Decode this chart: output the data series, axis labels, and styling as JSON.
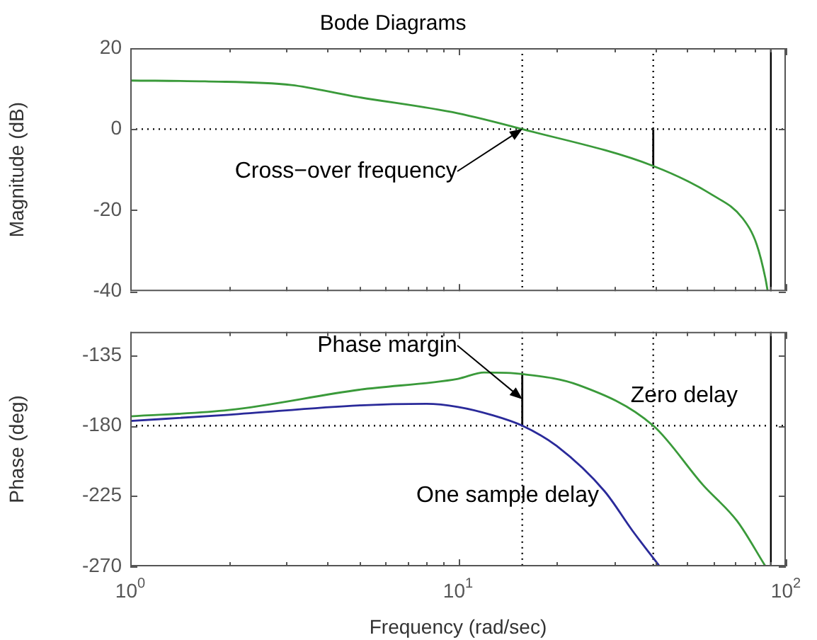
{
  "chart_data": [
    {
      "type": "line",
      "title": "Bode Diagrams",
      "ylabel": "Magnitude (dB)",
      "log": "x",
      "xlim": [
        1,
        100
      ],
      "xticks": [
        1,
        {
          "value": 2,
          "label": null
        },
        {
          "value": 3,
          "label": null
        },
        {
          "value": 4,
          "label": null
        },
        {
          "value": 5,
          "label": null
        },
        {
          "value": 6,
          "label": null
        },
        {
          "value": 7,
          "label": null
        },
        {
          "value": 8,
          "label": null
        },
        {
          "value": 9,
          "label": null
        },
        10,
        {
          "value": 20,
          "label": null
        },
        {
          "value": 30,
          "label": null
        },
        {
          "value": 40,
          "label": null
        },
        {
          "value": 50,
          "label": null
        },
        {
          "value": 60,
          "label": null
        },
        {
          "value": 70,
          "label": null
        },
        {
          "value": 80,
          "label": null
        },
        {
          "value": 90,
          "label": null
        },
        100
      ],
      "ylim": [
        -40,
        20
      ],
      "yticks": [
        -40,
        -20,
        0,
        20
      ],
      "tick_labels": "y",
      "grid": false,
      "marker": "none",
      "line_style": "solid",
      "series": [
        {
          "color": "#3a9a3a",
          "x": [
            1,
            1.69,
            3.1,
            4.8,
            10,
            15.7,
            39.4,
            59.8,
            73.8,
            81.5,
            86.7,
            88
          ],
          "values": [
            12,
            11.8,
            10.9,
            8.1,
            3.9,
            0,
            -9.1,
            -16.3,
            -22,
            -28.5,
            -37,
            -40
          ]
        },
        {
          "color": "#000000",
          "x": [
            39.4,
            39.4
          ],
          "values": [
            0,
            -9.1
          ]
        }
      ],
      "ref_lines": [
        {
          "axis": "y",
          "value": 0,
          "color": "#000000",
          "line_style": "dotted"
        },
        {
          "axis": "x",
          "value": 15.7,
          "color": "#000000",
          "line_style": "dotted"
        },
        {
          "axis": "x",
          "value": 39.4,
          "color": "#000000",
          "line_style": "dotted"
        },
        {
          "axis": "x",
          "value": 90,
          "color": "#000000",
          "line_style": "solid"
        }
      ],
      "annotations": [
        {
          "text": "Cross−over frequency",
          "x": 15.7,
          "y": 0
        }
      ]
    },
    {
      "type": "line",
      "xlabel": "Frequency (rad/sec)",
      "ylabel": "Phase (deg)",
      "log": "x",
      "xlim": [
        1,
        100
      ],
      "xticks": [
        {
          "value": 1,
          "label": "10$^{0}$"
        },
        {
          "value": 2,
          "label": null
        },
        {
          "value": 3,
          "label": null
        },
        {
          "value": 4,
          "label": null
        },
        {
          "value": 5,
          "label": null
        },
        {
          "value": 6,
          "label": null
        },
        {
          "value": 7,
          "label": null
        },
        {
          "value": 8,
          "label": null
        },
        {
          "value": 9,
          "label": null
        },
        {
          "value": 10,
          "label": "10$^{1}$"
        },
        {
          "value": 20,
          "label": null
        },
        {
          "value": 30,
          "label": null
        },
        {
          "value": 40,
          "label": null
        },
        {
          "value": 50,
          "label": null
        },
        {
          "value": 60,
          "label": null
        },
        {
          "value": 70,
          "label": null
        },
        {
          "value": 80,
          "label": null
        },
        {
          "value": 90,
          "label": null
        },
        {
          "value": 100,
          "label": "10$^{2}$"
        }
      ],
      "ylim": [
        -270,
        -120
      ],
      "yticks": [
        -270,
        -225,
        -180,
        -135
      ],
      "grid": false,
      "marker": "none",
      "line_style": "solid",
      "series": [
        {
          "color": "#3a9a3a",
          "x": [
            1,
            2,
            5,
            10,
            12,
            15.7,
            23.3,
            39.4,
            55.9,
            71,
            86.7
          ],
          "values": [
            -174,
            -170,
            -157,
            -150,
            -146,
            -147,
            -154,
            -180,
            -218,
            -241,
            -270
          ]
        },
        {
          "color": "#2a2a9a",
          "x": [
            1,
            2,
            5,
            8,
            10,
            12.6,
            15.7,
            20,
            28,
            34,
            41.2
          ],
          "values": [
            -177,
            -173,
            -167,
            -166,
            -168,
            -173,
            -180,
            -193,
            -222,
            -247,
            -270
          ]
        },
        {
          "color": "#000000",
          "x": [
            15.7,
            15.7
          ],
          "values": [
            -180,
            -147
          ]
        }
      ],
      "ref_lines": [
        {
          "axis": "y",
          "value": -180,
          "color": "#000000",
          "line_style": "dotted"
        },
        {
          "axis": "x",
          "value": 15.7,
          "color": "#000000",
          "line_style": "dotted"
        },
        {
          "axis": "x",
          "value": 39.4,
          "color": "#000000",
          "line_style": "dotted"
        },
        {
          "axis": "x",
          "value": 90,
          "color": "#000000",
          "line_style": "solid"
        }
      ],
      "annotations": [
        {
          "text": "Phase margin",
          "x": 15.7,
          "y": -163
        },
        {
          "text": "Zero delay",
          "x": 39.4,
          "y": -180
        },
        {
          "text": "One sample delay",
          "x": 28,
          "y": -222
        }
      ]
    }
  ]
}
